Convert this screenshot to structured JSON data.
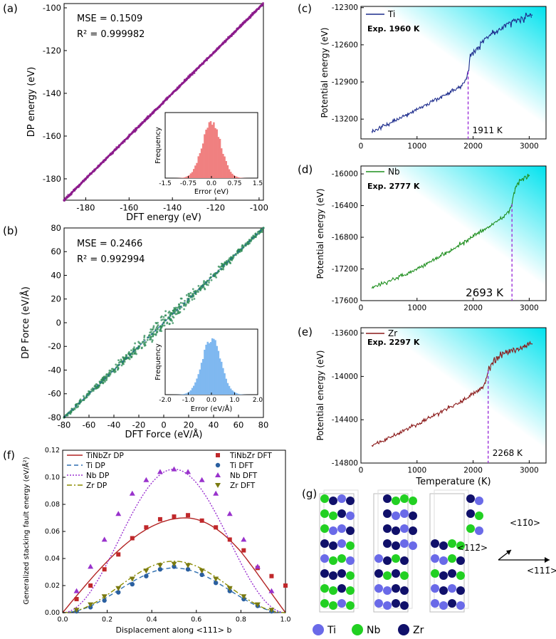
{
  "panel_labels": {
    "a": "(a)",
    "b": "(b)",
    "c": "(c)",
    "d": "(d)",
    "e": "(e)",
    "f": "(f)",
    "g": "(g)"
  },
  "chart_data": [
    {
      "id": "a",
      "type": "scatter",
      "xlabel": "DFT energy (eV)",
      "ylabel": "DP energy (eV)",
      "xlim": [
        -190,
        -98
      ],
      "ylim": [
        -190,
        -98
      ],
      "xticks": [
        -180,
        -160,
        -140,
        -120,
        -100
      ],
      "yticks": [
        -180,
        -160,
        -140,
        -120,
        -100
      ],
      "annotations": [
        "MSE  = 0.1509",
        "R² = 0.999982"
      ],
      "color": "#8b1a8b",
      "x": [
        -190,
        -180,
        -170,
        -160,
        -150,
        -140,
        -130,
        -120,
        -110,
        -100
      ],
      "y": [
        -190,
        -180,
        -170,
        -160,
        -150,
        -140,
        -130,
        -120,
        -110,
        -100
      ],
      "inset": {
        "type": "histogram",
        "xlabel": "Error (eV)",
        "ylabel": "Frequency",
        "xticks": [
          "-1.5",
          "-0.75",
          "0.0",
          "0.75",
          "1.5"
        ],
        "xlim": [
          -1.5,
          1.5
        ],
        "color": "#f08080",
        "mean": 0.0,
        "std": 0.3
      }
    },
    {
      "id": "b",
      "type": "scatter",
      "xlabel": "DFT Force (eV/Å)",
      "ylabel": "DP Force (eV/Å)",
      "xlim": [
        -80,
        80
      ],
      "ylim": [
        -80,
        80
      ],
      "xticks": [
        -80,
        -60,
        -40,
        -20,
        0,
        20,
        40,
        60,
        80
      ],
      "yticks": [
        -80,
        -60,
        -40,
        -20,
        0,
        20,
        40,
        60,
        80
      ],
      "annotations": [
        "MSE  = 0.2466",
        "R² = 0.992994"
      ],
      "color": "#2e8b57",
      "x": [
        -80,
        -60,
        -40,
        -20,
        0,
        20,
        40,
        60,
        80
      ],
      "y": [
        -80,
        -60,
        -40,
        -20,
        0,
        20,
        40,
        60,
        80
      ],
      "inset": {
        "type": "histogram",
        "xlabel": "Error (eV/Å)",
        "ylabel": "Frequency",
        "xticks": [
          "-2.0",
          "-1.0",
          "0.0",
          "1.0",
          "2.0"
        ],
        "xlim": [
          -2,
          2
        ],
        "color": "#7fb8f0",
        "mean": 0.0,
        "std": 0.4
      }
    },
    {
      "id": "c",
      "type": "line",
      "ylabel": "Potential energy (eV)",
      "series": [
        {
          "name": "Ti",
          "color": "#1c2b8c",
          "x": [
            200,
            800,
            1400,
            1800,
            1880,
            1910,
            1950,
            2050,
            2300,
            2700,
            3050
          ],
          "y": [
            -13300,
            -13170,
            -13030,
            -12930,
            -12870,
            -12820,
            -12680,
            -12640,
            -12520,
            -12410,
            -12360
          ]
        }
      ],
      "exp_label": "Exp. 1960 K",
      "melt_label": "1911 K",
      "melt_x": 1911,
      "xlim": [
        0,
        3300
      ],
      "ylim": [
        -13360,
        -12290
      ],
      "xticks": [
        0,
        1000,
        2000,
        3000
      ],
      "yticks": [
        -13200,
        -12900,
        -12600,
        -12300
      ]
    },
    {
      "id": "d",
      "type": "line",
      "ylabel": "Potential energy (eV)",
      "series": [
        {
          "name": "Nb",
          "color": "#1f8f1f",
          "x": [
            200,
            1000,
            1800,
            2300,
            2550,
            2650,
            2693,
            2750,
            2850,
            3000
          ],
          "y": [
            -17440,
            -17200,
            -16880,
            -16660,
            -16540,
            -16460,
            -16380,
            -16180,
            -16080,
            -16020
          ]
        }
      ],
      "exp_label": "Exp. 2777 K",
      "melt_label": "2693 K",
      "melt_x": 2693,
      "xlim": [
        0,
        3300
      ],
      "ylim": [
        -17600,
        -15900
      ],
      "xticks": [
        0,
        1000,
        2000,
        3000
      ],
      "yticks": [
        -17600,
        -17200,
        -16800,
        -16400,
        -16000
      ]
    },
    {
      "id": "e",
      "type": "line",
      "ylabel": "Potential energy (eV)",
      "xlabel": "Temperature (K)",
      "series": [
        {
          "name": "Zr",
          "color": "#8b1a1a",
          "x": [
            200,
            1000,
            1800,
            2150,
            2230,
            2268,
            2330,
            2500,
            2800,
            3050
          ],
          "y": [
            -14640,
            -14440,
            -14230,
            -14110,
            -14040,
            -13950,
            -13880,
            -13800,
            -13740,
            -13700
          ]
        }
      ],
      "exp_label": "Exp. 2297 K",
      "melt_label": "2268 K",
      "melt_x": 2268,
      "xlim": [
        0,
        3300
      ],
      "ylim": [
        -14800,
        -13550
      ],
      "xticks": [
        0,
        1000,
        2000,
        3000
      ],
      "yticks": [
        -14800,
        -14400,
        -14000,
        -13600
      ]
    },
    {
      "id": "f",
      "type": "line",
      "xlabel": "Displacement along <111> b",
      "ylabel": "Generalized stacking fault energy (eV/Å²)",
      "xlim": [
        0,
        1
      ],
      "ylim": [
        0,
        0.12
      ],
      "xticks": [
        "0.0",
        "0.2",
        "0.4",
        "0.6",
        "0.8",
        "1.0"
      ],
      "yticks": [
        "0.00",
        "0.02",
        "0.04",
        "0.06",
        "0.08",
        "0.10",
        "0.12"
      ],
      "series": [
        {
          "name": "TiNbZr DP",
          "style": "solid",
          "color": "#b22222",
          "peak": 0.07,
          "peak_x": 0.55,
          "curve": true
        },
        {
          "name": "Ti DP",
          "style": "dashed",
          "color": "#2f6fb0",
          "peak": 0.033,
          "peak_x": 0.5,
          "curve": true
        },
        {
          "name": "Nb DP",
          "style": "dotted",
          "color": "#9a30d0",
          "peak": 0.106,
          "peak_x": 0.5,
          "curve": true
        },
        {
          "name": "Zr DP",
          "style": "dashdot",
          "color": "#8b8b00",
          "peak": 0.038,
          "peak_x": 0.5,
          "curve": true
        },
        {
          "name": "TiNbZr DFT",
          "marker": "square",
          "color": "#c0282b",
          "x": [
            0.0625,
            0.125,
            0.1875,
            0.25,
            0.3125,
            0.375,
            0.4375,
            0.5,
            0.5625,
            0.625,
            0.6875,
            0.75,
            0.8125,
            0.875,
            0.9375,
            1.0
          ],
          "y": [
            0.01,
            0.02,
            0.032,
            0.043,
            0.055,
            0.063,
            0.069,
            0.071,
            0.072,
            0.068,
            0.063,
            0.054,
            0.046,
            0.033,
            0.027,
            0.02
          ]
        },
        {
          "name": "Ti DFT",
          "marker": "circle",
          "color": "#2a5fa0",
          "x": [
            0.0625,
            0.125,
            0.1875,
            0.25,
            0.3125,
            0.375,
            0.4375,
            0.5,
            0.5625,
            0.625,
            0.6875,
            0.75,
            0.8125,
            0.875,
            0.9375
          ],
          "y": [
            0.001,
            0.004,
            0.009,
            0.015,
            0.021,
            0.027,
            0.032,
            0.034,
            0.032,
            0.028,
            0.022,
            0.016,
            0.01,
            0.005,
            0.001
          ]
        },
        {
          "name": "Nb DFT",
          "marker": "triangle-up",
          "color": "#9932cc",
          "x": [
            0.0625,
            0.125,
            0.1875,
            0.25,
            0.3125,
            0.375,
            0.4375,
            0.5,
            0.5625,
            0.625,
            0.6875,
            0.75,
            0.8125,
            0.875,
            0.9375
          ],
          "y": [
            0.016,
            0.034,
            0.054,
            0.073,
            0.088,
            0.098,
            0.104,
            0.106,
            0.104,
            0.098,
            0.088,
            0.073,
            0.054,
            0.034,
            0.016
          ]
        },
        {
          "name": "Zr DFT",
          "marker": "triangle-down",
          "color": "#7a7a10",
          "x": [
            0.0625,
            0.125,
            0.1875,
            0.25,
            0.3125,
            0.375,
            0.4375,
            0.5,
            0.5625,
            0.625,
            0.6875,
            0.75,
            0.8125,
            0.875,
            0.9375
          ],
          "y": [
            0.002,
            0.006,
            0.012,
            0.018,
            0.025,
            0.031,
            0.035,
            0.036,
            0.035,
            0.031,
            0.025,
            0.018,
            0.012,
            0.006,
            0.002
          ]
        }
      ]
    }
  ],
  "panel_g": {
    "legend": [
      {
        "name": "Ti",
        "color": "#6a6ae8"
      },
      {
        "name": "Nb",
        "color": "#22d022"
      },
      {
        "name": "Zr",
        "color": "#10106a"
      }
    ],
    "directions": [
      "<11̄0>",
      "<112̄>",
      "<111̄>"
    ]
  }
}
